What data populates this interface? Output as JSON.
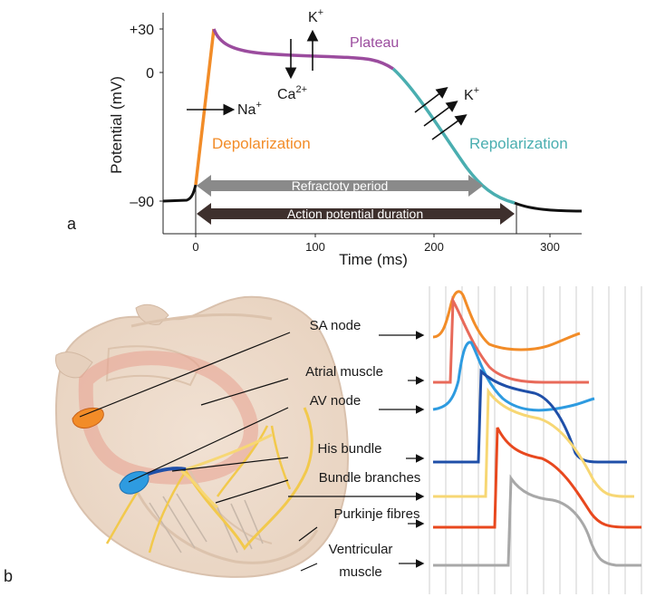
{
  "panel_a": {
    "letter": "a",
    "ylabel": "Potential (mV)",
    "xlabel": "Time (ms)",
    "ytick_labels": [
      "+30",
      "0",
      "–90"
    ],
    "xtick_labels": [
      "0",
      "100",
      "200",
      "300"
    ],
    "phases": {
      "plateau": "Plateau",
      "depolarization": "Depolarization",
      "repolarization": "Repolarization"
    },
    "ions": {
      "na": "Na",
      "na_sup": "+",
      "ca": "Ca",
      "ca_sup": "2+",
      "k1": "K",
      "k1_sup": "+",
      "k2": "K",
      "k2_sup": "+"
    },
    "bars": {
      "refractory": "Refractoty period",
      "duration": "Action potential duration"
    },
    "colors": {
      "depolarization": "#f28c28",
      "plateau": "#9b4c9e",
      "repolarization": "#4aaeb0",
      "baseline": "#111111",
      "refractory_bar": "#8a8a8a",
      "duration_bar": "#3e302d"
    }
  },
  "panel_b": {
    "letter": "b",
    "labels": {
      "sa": "SA node",
      "atrial": "Atrial muscle",
      "av": "AV node",
      "his": "His bundle",
      "branches": "Bundle branches",
      "purkinje": "Purkinje fibres",
      "ventricular_1": "Ventricular",
      "ventricular_2": "muscle"
    },
    "colors": {
      "sa": "#f28c28",
      "atrial": "#e86a5a",
      "av": "#2e9be0",
      "his": "#1f4fa8",
      "branches": "#f7d774",
      "purkinje": "#e8481e",
      "ventricular": "#a8a8a8"
    }
  }
}
